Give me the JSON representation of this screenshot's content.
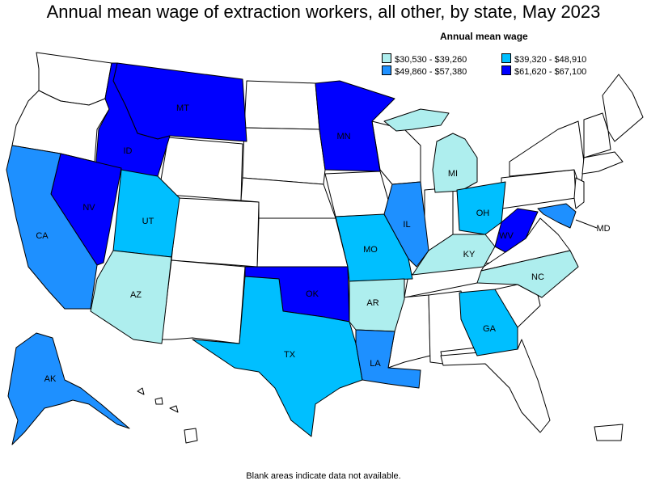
{
  "title": "Annual mean wage of extraction workers, all other, by state, May 2023",
  "legend": {
    "title": "Annual mean wage",
    "bins": [
      {
        "label": "$30,530 - $39,260",
        "color": "#aeeeee"
      },
      {
        "label": "$39,320 - $48,910",
        "color": "#00bfff"
      },
      {
        "label": "$49,860 - $57,380",
        "color": "#1e90ff"
      },
      {
        "label": "$61,620 - $67,100",
        "color": "#0000ff"
      }
    ]
  },
  "no_data_color": "#ffffff",
  "footnote": "Blank areas indicate data not available.",
  "states": [
    {
      "code": "MT",
      "bin": 3
    },
    {
      "code": "ID",
      "bin": 3
    },
    {
      "code": "NV",
      "bin": 3
    },
    {
      "code": "MN",
      "bin": 3
    },
    {
      "code": "OK",
      "bin": 3
    },
    {
      "code": "WV",
      "bin": 3
    },
    {
      "code": "CA",
      "bin": 2
    },
    {
      "code": "IL",
      "bin": 2
    },
    {
      "code": "LA",
      "bin": 2
    },
    {
      "code": "AK",
      "bin": 2
    },
    {
      "code": "MD",
      "bin": 2
    },
    {
      "code": "UT",
      "bin": 1
    },
    {
      "code": "TX",
      "bin": 1
    },
    {
      "code": "MO",
      "bin": 1
    },
    {
      "code": "OH",
      "bin": 1
    },
    {
      "code": "GA",
      "bin": 1
    },
    {
      "code": "AZ",
      "bin": 0
    },
    {
      "code": "AR",
      "bin": 0
    },
    {
      "code": "KY",
      "bin": 0
    },
    {
      "code": "NC",
      "bin": 0
    },
    {
      "code": "MI",
      "bin": 0
    }
  ]
}
